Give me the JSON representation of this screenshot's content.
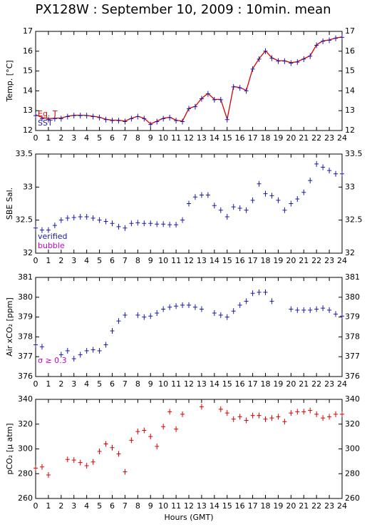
{
  "chart_data": [
    {
      "type": "line",
      "title": "PX128W : September 10, 2009 : 10min. mean",
      "ylabel": "Temp. [°C]",
      "x": [
        0,
        0.5,
        1,
        1.5,
        2,
        2.5,
        3,
        3.5,
        4,
        4.5,
        5,
        5.5,
        6,
        6.5,
        7,
        7.5,
        8,
        8.5,
        9,
        9.5,
        10,
        10.5,
        11,
        11.5,
        12,
        12.5,
        13,
        13.5,
        14,
        14.5,
        15,
        15.5,
        16,
        16.5,
        17,
        17.5,
        18,
        18.5,
        19,
        19.5,
        20,
        20.5,
        21,
        21.5,
        22,
        22.5,
        23,
        23.5,
        24
      ],
      "series": [
        {
          "name": "Eq. T",
          "color": "#dd0000",
          "style": "line",
          "values": [
            12.8,
            12.65,
            12.6,
            12.62,
            12.63,
            12.72,
            12.77,
            12.77,
            12.76,
            12.72,
            12.67,
            12.57,
            12.52,
            12.52,
            12.47,
            12.62,
            12.72,
            12.62,
            12.33,
            12.47,
            12.62,
            12.67,
            12.52,
            12.47,
            13.12,
            13.22,
            13.62,
            13.87,
            13.57,
            13.57,
            12.57,
            14.22,
            14.17,
            14.02,
            15.12,
            15.62,
            16.02,
            15.67,
            15.52,
            15.52,
            15.42,
            15.47,
            15.62,
            15.77,
            16.32,
            16.52,
            16.57,
            16.67,
            16.72
          ]
        },
        {
          "name": "SST",
          "color": "#1a1aaa",
          "style": "cross",
          "values": [
            12.75,
            12.6,
            12.55,
            12.6,
            12.6,
            12.7,
            12.75,
            12.75,
            12.75,
            12.7,
            12.65,
            12.55,
            12.5,
            12.5,
            12.45,
            12.6,
            12.7,
            12.6,
            12.3,
            12.45,
            12.6,
            12.65,
            12.5,
            12.45,
            13.1,
            13.2,
            13.6,
            13.85,
            13.55,
            13.55,
            12.55,
            14.2,
            14.15,
            14.0,
            15.1,
            15.6,
            16.0,
            15.65,
            15.5,
            15.5,
            15.4,
            15.45,
            15.6,
            15.75,
            16.3,
            16.5,
            16.55,
            16.65,
            16.7
          ]
        }
      ],
      "legend": "lower left",
      "xlim": [
        0,
        24
      ],
      "xticks": [
        0,
        1,
        2,
        3,
        4,
        5,
        6,
        7,
        8,
        9,
        10,
        11,
        12,
        13,
        14,
        15,
        16,
        17,
        18,
        19,
        20,
        21,
        22,
        23,
        24
      ],
      "ylim": [
        12,
        17
      ],
      "yticks": [
        12,
        13,
        14,
        15,
        16,
        17
      ]
    },
    {
      "type": "line",
      "ylabel": "SBE Sal.",
      "x": [
        0,
        0.5,
        1,
        1.5,
        2,
        2.5,
        3,
        3.5,
        4,
        4.5,
        5,
        5.5,
        6,
        6.5,
        7,
        7.5,
        8,
        8.5,
        9,
        9.5,
        10,
        10.5,
        11,
        11.5,
        12,
        12.5,
        13,
        13.5,
        14,
        14.5,
        15,
        15.5,
        16,
        16.5,
        17,
        17.5,
        18,
        18.5,
        19,
        19.5,
        20,
        20.5,
        21,
        21.5,
        22,
        22.5,
        23,
        23.5,
        24
      ],
      "series": [
        {
          "name": "verified",
          "color": "#1a1aaa",
          "style": "cross",
          "values": [
            32.38,
            32.35,
            32.35,
            32.42,
            32.5,
            32.53,
            32.54,
            32.55,
            32.55,
            32.53,
            32.5,
            32.48,
            32.45,
            32.4,
            32.38,
            32.45,
            32.46,
            32.45,
            32.45,
            32.44,
            32.44,
            32.43,
            32.43,
            32.5,
            32.75,
            32.85,
            32.88,
            32.88,
            32.72,
            32.65,
            32.55,
            32.7,
            32.68,
            32.65,
            32.8,
            33.05,
            32.9,
            32.87,
            32.8,
            32.65,
            32.75,
            32.82,
            32.92,
            33.1,
            33.35,
            33.3,
            33.25,
            33.2,
            33.2
          ]
        },
        {
          "name": "bubble",
          "color": "#cc00cc",
          "style": "cross",
          "values": [
            null,
            null,
            null,
            null,
            null,
            null,
            null,
            null,
            null,
            null,
            null,
            null,
            null,
            null,
            null,
            null,
            null,
            null,
            null,
            null,
            null,
            null,
            null,
            null,
            null,
            null,
            null,
            null,
            null,
            null,
            null,
            null,
            null,
            null,
            null,
            null,
            null,
            null,
            null,
            null,
            null,
            null,
            null,
            null,
            null,
            null,
            null,
            null,
            null
          ]
        }
      ],
      "legend": "lower left",
      "xlim": [
        0,
        24
      ],
      "xticks": [
        0,
        1,
        2,
        3,
        4,
        5,
        6,
        7,
        8,
        9,
        10,
        11,
        12,
        13,
        14,
        15,
        16,
        17,
        18,
        19,
        20,
        21,
        22,
        23,
        24
      ],
      "ylim": [
        32,
        33.5
      ],
      "yticks": [
        32,
        32.5,
        33,
        33.5
      ]
    },
    {
      "type": "line",
      "ylabel": "Air xCO₂ [ppm]",
      "annotation": {
        "text": "σ ≥ 0.3",
        "color": "#cc00cc"
      },
      "x": [
        0,
        0.5,
        1,
        1.5,
        2,
        2.5,
        3,
        3.5,
        4,
        4.5,
        5,
        5.5,
        6,
        6.5,
        7,
        7.5,
        8,
        8.5,
        9,
        9.5,
        10,
        10.5,
        11,
        11.5,
        12,
        12.5,
        13,
        13.5,
        14,
        14.5,
        15,
        15.5,
        16,
        16.5,
        17,
        17.5,
        18,
        18.5,
        19,
        19.5,
        20,
        20.5,
        21,
        21.5,
        22,
        22.5,
        23,
        23.5,
        24
      ],
      "series": [
        {
          "color": "#1a1aaa",
          "style": "cross",
          "values": [
            377.6,
            377.5,
            null,
            null,
            377.1,
            377.3,
            376.9,
            377.1,
            377.3,
            377.35,
            377.3,
            377.6,
            378.3,
            378.8,
            379.1,
            null,
            379.1,
            379.0,
            379.05,
            379.2,
            379.4,
            379.5,
            379.55,
            379.6,
            379.6,
            379.5,
            379.4,
            null,
            379.2,
            379.1,
            379.0,
            379.3,
            379.6,
            379.8,
            380.2,
            380.25,
            380.25,
            379.8,
            null,
            null,
            379.4,
            379.35,
            379.35,
            379.35,
            379.4,
            379.45,
            379.35,
            379.15,
            379.05
          ]
        }
      ],
      "xlim": [
        0,
        24
      ],
      "xticks": [
        0,
        1,
        2,
        3,
        4,
        5,
        6,
        7,
        8,
        9,
        10,
        11,
        12,
        13,
        14,
        15,
        16,
        17,
        18,
        19,
        20,
        21,
        22,
        23,
        24
      ],
      "ylim": [
        376,
        381
      ],
      "yticks": [
        376,
        377,
        378,
        379,
        380,
        381
      ]
    },
    {
      "type": "line",
      "ylabel": "pCO₂ [μ atm]",
      "xlabel": "Hours (GMT)",
      "x": [
        0,
        0.5,
        1,
        1.5,
        2,
        2.5,
        3,
        3.5,
        4,
        4.5,
        5,
        5.5,
        6,
        6.5,
        7,
        7.5,
        8,
        8.5,
        9,
        9.5,
        10,
        10.5,
        11,
        11.5,
        12,
        12.5,
        13,
        13.5,
        14,
        14.5,
        15,
        15.5,
        16,
        16.5,
        17,
        17.5,
        18,
        18.5,
        19,
        19.5,
        20,
        20.5,
        21,
        21.5,
        22,
        22.5,
        23,
        23.5,
        24
      ],
      "series": [
        {
          "color": "#dd0000",
          "style": "cross",
          "values": [
            284.5,
            285.5,
            279,
            null,
            null,
            291.5,
            291,
            289,
            286.5,
            289.5,
            298,
            304,
            301,
            296,
            281.5,
            307,
            314,
            315,
            310,
            302,
            318,
            330,
            316,
            328,
            null,
            null,
            334,
            null,
            null,
            332,
            329,
            324,
            326,
            323,
            327,
            327,
            324,
            325,
            326,
            322,
            329,
            330,
            330,
            331,
            328,
            325,
            326,
            328,
            328
          ]
        }
      ],
      "xlim": [
        0,
        24
      ],
      "xticks": [
        0,
        1,
        2,
        3,
        4,
        5,
        6,
        7,
        8,
        9,
        10,
        11,
        12,
        13,
        14,
        15,
        16,
        17,
        18,
        19,
        20,
        21,
        22,
        23,
        24
      ],
      "ylim": [
        260,
        340
      ],
      "yticks": [
        260,
        280,
        300,
        320,
        340
      ]
    }
  ]
}
